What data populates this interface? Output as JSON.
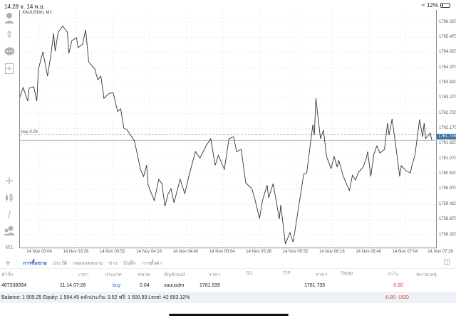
{
  "status_bar": {
    "time": "14:28",
    "date": "จ. 14 พ.ย.",
    "battery": "12%",
    "wifi_icon": "wifi-icon"
  },
  "chart": {
    "symbol_label": "XAUUSDm, M1",
    "buy_line_label": "buy 0.04",
    "current_price_label": "1761.735",
    "timeframe": "M1"
  },
  "sidebar": {
    "icons": [
      "user-icon",
      "trade-arrows-icon",
      "chat-icon",
      "new-document-icon",
      "crosshair-icon",
      "candlestick-icon",
      "function-icon",
      "people-icon"
    ]
  },
  "chart_data": {
    "type": "line",
    "title": "XAUUSDm, M1",
    "x_ticks": [
      "14 Nov 03:04",
      "14 Nov 03:28",
      "14 Nov 03:52",
      "14 Nov 04:16",
      "14 Nov 04:40",
      "14 Nov 05:04",
      "14 Nov 05:28",
      "14 Nov 05:52",
      "14 Nov 06:16",
      "14 Nov 06:40",
      "14 Nov 07:04",
      "14 Nov 07:28"
    ],
    "y_ticks": [
      "1766.020",
      "1765.470",
      "1764.920",
      "1764.370",
      "1763.820",
      "1763.270",
      "1762.720",
      "1762.170",
      "1761.620",
      "1761.070",
      "1760.520",
      "1759.970",
      "1759.420",
      "1758.870",
      "1758.320"
    ],
    "ylim": [
      1757.9,
      1766.4
    ],
    "grid": true,
    "buy_level": 1761.935,
    "current_price": 1761.735,
    "colors": {
      "line": "#333333",
      "current_price": "#3d6ea8",
      "grid": "#dddddd"
    },
    "series": [
      {
        "x": [
          "02:50",
          "02:53",
          "02:56",
          "02:57",
          "03:00",
          "03:02",
          "03:03",
          "03:06",
          "03:09",
          "03:11",
          "03:13",
          "03:14",
          "03:16",
          "03:19",
          "03:22",
          "03:23",
          "03:25",
          "03:28",
          "03:29",
          "03:32",
          "03:34",
          "03:36",
          "03:40",
          "03:42",
          "03:44",
          "03:46",
          "03:49",
          "03:52",
          "03:55",
          "03:57",
          "03:59",
          "04:01",
          "04:06",
          "04:10",
          "04:12",
          "04:14",
          "04:15",
          "04:19",
          "04:22",
          "04:24",
          "04:26",
          "04:28",
          "04:30",
          "04:32",
          "04:34",
          "04:36",
          "04:39",
          "04:42",
          "04:46",
          "04:49",
          "04:53",
          "04:56",
          "04:59",
          "05:01",
          "05:05",
          "05:08",
          "05:11",
          "05:13",
          "05:16",
          "05:19",
          "05:23",
          "05:25",
          "05:28",
          "05:30",
          "05:33",
          "05:34",
          "05:37",
          "05:41",
          "05:42",
          "05:45",
          "05:48",
          "05:50",
          "05:51",
          "05:57",
          "05:59",
          "06:03",
          "06:04",
          "06:05",
          "06:08",
          "06:10",
          "06:12",
          "06:15",
          "06:17",
          "06:19",
          "06:20",
          "06:23",
          "06:27",
          "06:29",
          "06:31",
          "06:33",
          "06:36",
          "06:38",
          "06:39",
          "06:41",
          "06:43",
          "06:45",
          "06:47",
          "06:50",
          "06:52",
          "06:53",
          "06:55",
          "06:58",
          "07:00",
          "07:01",
          "07:04",
          "07:07",
          "07:08",
          "07:10",
          "07:13",
          "07:15",
          "07:16",
          "07:17",
          "07:20",
          "07:21"
        ],
        "y": [
          1763.16,
          1763.65,
          1763.16,
          1763.63,
          1763.68,
          1763.16,
          1764.32,
          1764.94,
          1764.06,
          1764.76,
          1765.61,
          1764.96,
          1765.66,
          1765.87,
          1765.66,
          1764.89,
          1765.35,
          1765.45,
          1765.09,
          1765.22,
          1765.74,
          1764.58,
          1764.32,
          1763.93,
          1764.06,
          1763.26,
          1763.42,
          1763.47,
          1762.78,
          1762.88,
          1762.18,
          1762.13,
          1761.72,
          1760.69,
          1760.43,
          1760.84,
          1760.12,
          1759.56,
          1760.33,
          1760.17,
          1759.35,
          1759.79,
          1759.99,
          1759.48,
          1759.92,
          1760.33,
          1759.81,
          1760.51,
          1761.33,
          1761.1,
          1761.54,
          1761.8,
          1760.84,
          1761.2,
          1760.69,
          1761.8,
          1761.87,
          1761.33,
          1761.41,
          1760.2,
          1759.99,
          1759.61,
          1758.91,
          1759.56,
          1760.12,
          1759.66,
          1760.17,
          1758.89,
          1759.4,
          1757.99,
          1758.4,
          1758.06,
          1758.37,
          1760.51,
          1760.56,
          1762.31,
          1761.93,
          1763.26,
          1761.8,
          1762.11,
          1761.15,
          1760.72,
          1761.15,
          1760.77,
          1761.02,
          1760.43,
          1759.92,
          1760.48,
          1760.3,
          1760.59,
          1760.77,
          1761.08,
          1761.33,
          1760.43,
          1761.23,
          1761.54,
          1761.28,
          1761.41,
          1762.36,
          1761.93,
          1762.52,
          1761.28,
          1760.43,
          1760.82,
          1760.64,
          1760.56,
          1760.84,
          1761.2,
          1762.49,
          1761.87,
          1762.36,
          1761.8,
          1762.0,
          1761.75
        ]
      }
    ]
  },
  "tabs": [
    {
      "label": "การซื้อขาย",
      "active": true
    },
    {
      "label": "ประวัติ"
    },
    {
      "label": "กล่องจดหมาย"
    },
    {
      "label": "ข่าว"
    },
    {
      "label": "บันทึก"
    },
    {
      "label": "การตั้งค่า"
    }
  ],
  "table": {
    "headers": [
      "คำสั่ง",
      "เวลา",
      "ประเภท",
      "ขนาด",
      "สัญลักษณ์",
      "ราคา",
      "S/L",
      "T/P",
      "ราคา",
      "Swap",
      "กำไร",
      "หมายเหตุ"
    ],
    "rows": [
      {
        "order": "487338394",
        "time": "11.14 07:28",
        "type": "buy",
        "size": "0.04",
        "symbol": "xauusdm",
        "open_price": "1761.935",
        "sl": "",
        "tp": "",
        "price": "1761.735",
        "swap": "",
        "profit": "-0.80",
        "comment": ""
      }
    ]
  },
  "summary": {
    "text": "Balance: 1 505.25 Equity: 1 504.45 หลักประกัน: 3.52 ฟรี: 1 500.93 Level: 42 693.12%",
    "profit": "-0.80",
    "currency": "USD"
  }
}
